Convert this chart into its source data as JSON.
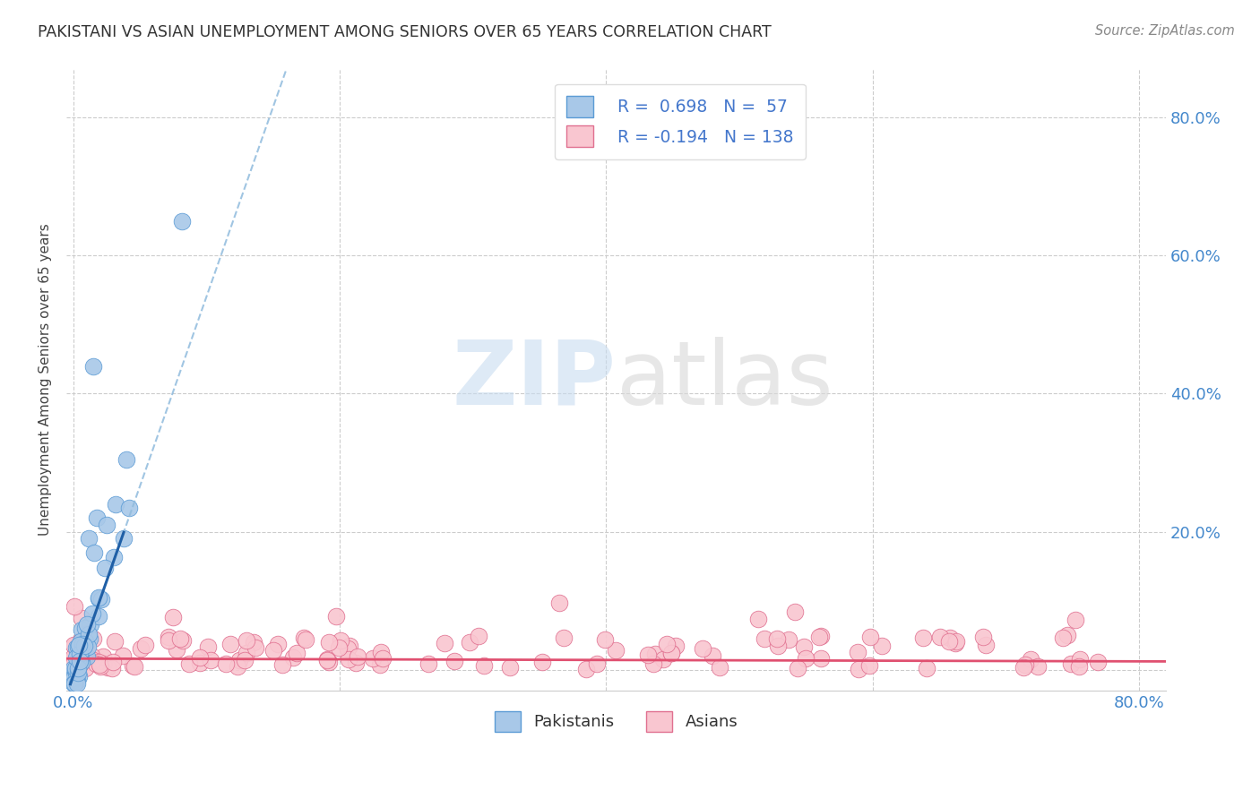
{
  "title": "PAKISTANI VS ASIAN UNEMPLOYMENT AMONG SENIORS OVER 65 YEARS CORRELATION CHART",
  "source": "Source: ZipAtlas.com",
  "ylabel": "Unemployment Among Seniors over 65 years",
  "xlim": [
    -0.005,
    0.82
  ],
  "ylim": [
    -0.03,
    0.87
  ],
  "x_ticks": [
    0.0,
    0.2,
    0.4,
    0.6,
    0.8
  ],
  "x_tick_labels": [
    "0.0%",
    "",
    "",
    "",
    "80.0%"
  ],
  "y_ticks": [
    0.0,
    0.2,
    0.4,
    0.6,
    0.8
  ],
  "y_tick_labels_right": [
    "",
    "20.0%",
    "40.0%",
    "60.0%",
    "80.0%"
  ],
  "blue_color": "#A8C8E8",
  "blue_edge_color": "#5B9BD5",
  "pink_color": "#F9C6D0",
  "pink_edge_color": "#E07090",
  "blue_line_color": "#1F5FA6",
  "pink_line_color": "#E05070",
  "blue_dash_color": "#90BBDD",
  "reg_pak_slope": 5.5,
  "reg_pak_intercept": -0.01,
  "reg_asi_slope": -0.005,
  "reg_asi_intercept": 0.016,
  "watermark_zip_color": "#C8DCF0",
  "watermark_atlas_color": "#D8D8D8"
}
